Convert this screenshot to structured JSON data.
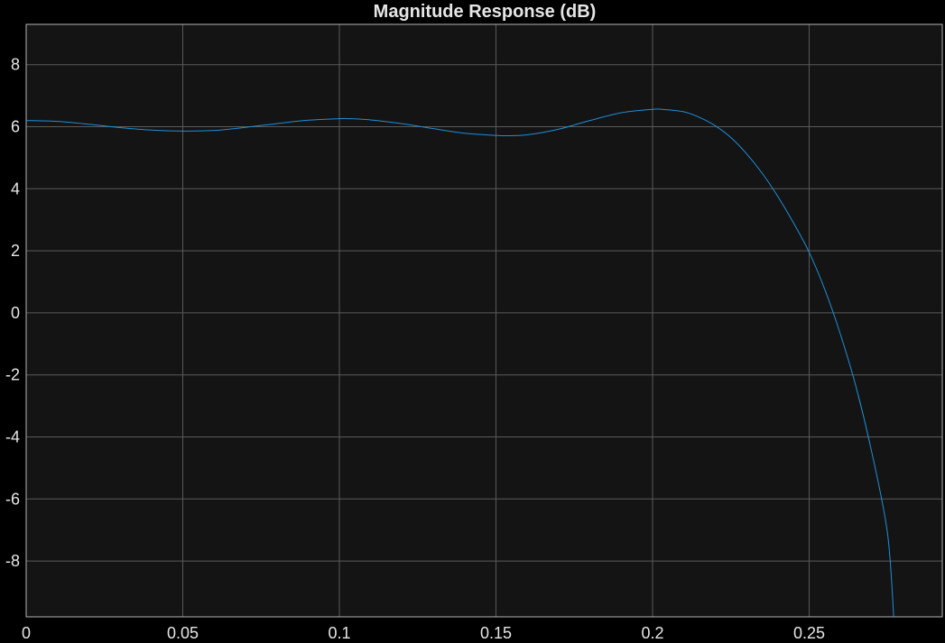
{
  "chart_data": {
    "type": "line",
    "title": "Magnitude Response (dB)",
    "xlabel": "",
    "ylabel": "",
    "xlim": [
      0,
      0.2925
    ],
    "ylim": [
      -9.8,
      9.3
    ],
    "grid": true,
    "x_ticks": [
      0,
      0.05,
      0.1,
      0.15,
      0.2,
      0.25
    ],
    "x_tick_labels": [
      "0",
      "0.05",
      "0.1",
      "0.15",
      "0.2",
      "0.25"
    ],
    "y_ticks": [
      8,
      6,
      4,
      2,
      0,
      -2,
      -4,
      -6,
      -8
    ],
    "y_tick_labels": [
      "8",
      "6",
      "4",
      "2",
      "0",
      "-2",
      "-4",
      "-6",
      "-8"
    ],
    "series": [
      {
        "color": "#1f8fd6",
        "x": [
          0,
          0.01,
          0.02,
          0.03,
          0.04,
          0.05,
          0.06,
          0.07,
          0.08,
          0.09,
          0.1,
          0.103,
          0.11,
          0.12,
          0.13,
          0.14,
          0.15,
          0.153,
          0.16,
          0.17,
          0.18,
          0.19,
          0.2,
          0.203,
          0.21,
          0.215,
          0.22,
          0.225,
          0.23,
          0.235,
          0.24,
          0.245,
          0.25,
          0.255,
          0.26,
          0.265,
          0.27,
          0.275,
          0.277
        ],
        "y": [
          6.2,
          6.17,
          6.08,
          5.97,
          5.89,
          5.86,
          5.88,
          5.98,
          6.1,
          6.21,
          6.26,
          6.26,
          6.22,
          6.1,
          5.94,
          5.79,
          5.72,
          5.71,
          5.74,
          5.92,
          6.2,
          6.45,
          6.56,
          6.56,
          6.48,
          6.3,
          6.03,
          5.65,
          5.13,
          4.5,
          3.75,
          2.9,
          1.95,
          0.75,
          -0.7,
          -2.4,
          -4.5,
          -7.1,
          -9.8
        ]
      }
    ]
  }
}
